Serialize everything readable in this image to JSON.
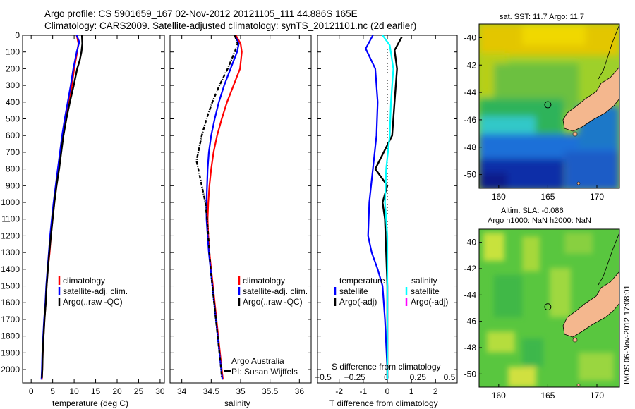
{
  "title_line1": "Argo profile: CS 5901659_167 02-Nov-2012 20121105_111 44.886S 165E",
  "title_line2": "Climatology: CARS2009. Satellite-adjusted climatology: synTS_20121101.nc (2d earlier)",
  "colors": {
    "climatology": "#ff0000",
    "satellite": "#0000ff",
    "argo": "#000000",
    "sat_salinity": "#00ffff",
    "argo_adj_salinity": "#ff00ff",
    "land": "#f4b78e"
  },
  "credit_lines": [
    "Argo Australia",
    "PI: Susan Wijffels"
  ],
  "side_stamp": "IMOS 06-Nov-2012 17:08:01",
  "chart_data": [
    {
      "type": "line",
      "name": "temperature",
      "xlabel": "temperature (deg C)",
      "ylabel": "",
      "xlim": [
        -2,
        31
      ],
      "ylim": [
        2080,
        0
      ],
      "y_inverted": true,
      "xticks": [
        0,
        5,
        10,
        15,
        20,
        25,
        30
      ],
      "yticks": [
        0,
        100,
        200,
        300,
        400,
        500,
        600,
        700,
        800,
        900,
        1000,
        1100,
        1200,
        1300,
        1400,
        1500,
        1600,
        1700,
        1800,
        1900,
        2000
      ],
      "legend": [
        "climatology",
        "satellite-adj. clim.",
        "Argo(..raw -QC)"
      ],
      "legend_position": "lower-right",
      "series": [
        {
          "name": "climatology",
          "color": "#ff0000",
          "points": [
            [
              10.6,
              0
            ],
            [
              11.0,
              50
            ],
            [
              10.7,
              100
            ],
            [
              10.0,
              200
            ],
            [
              9.5,
              300
            ],
            [
              8.8,
              400
            ],
            [
              8.1,
              500
            ],
            [
              7.5,
              600
            ],
            [
              6.9,
              700
            ],
            [
              6.4,
              800
            ],
            [
              5.9,
              900
            ],
            [
              5.4,
              1000
            ],
            [
              5.0,
              1100
            ],
            [
              4.6,
              1200
            ],
            [
              4.3,
              1300
            ],
            [
              3.9,
              1400
            ],
            [
              3.6,
              1500
            ],
            [
              3.4,
              1600
            ],
            [
              3.1,
              1700
            ],
            [
              2.9,
              1800
            ],
            [
              2.7,
              1900
            ],
            [
              2.6,
              2000
            ],
            [
              2.5,
              2060
            ]
          ]
        },
        {
          "name": "satellite-adj. clim.",
          "color": "#0000ff",
          "points": [
            [
              10.6,
              0
            ],
            [
              11.2,
              40
            ],
            [
              10.6,
              100
            ],
            [
              9.8,
              200
            ],
            [
              9.2,
              300
            ],
            [
              8.5,
              400
            ],
            [
              7.8,
              500
            ],
            [
              7.2,
              600
            ],
            [
              6.7,
              700
            ],
            [
              6.2,
              800
            ],
            [
              5.7,
              900
            ],
            [
              5.2,
              1000
            ],
            [
              4.8,
              1100
            ],
            [
              4.4,
              1200
            ],
            [
              4.1,
              1300
            ],
            [
              3.8,
              1400
            ],
            [
              3.5,
              1500
            ],
            [
              3.3,
              1600
            ],
            [
              3.0,
              1700
            ],
            [
              2.8,
              1800
            ],
            [
              2.6,
              1900
            ],
            [
              2.5,
              2000
            ],
            [
              2.4,
              2060
            ]
          ]
        },
        {
          "name": "Argo(..raw -QC)",
          "color": "#000000",
          "points": [
            [
              11.8,
              0
            ],
            [
              11.9,
              50
            ],
            [
              11.7,
              100
            ],
            [
              11.3,
              150
            ],
            [
              10.7,
              200
            ],
            [
              9.9,
              300
            ],
            [
              9.0,
              400
            ],
            [
              8.2,
              500
            ],
            [
              7.5,
              600
            ],
            [
              7.0,
              700
            ],
            [
              6.5,
              800
            ],
            [
              5.9,
              900
            ],
            [
              5.4,
              1000
            ],
            [
              5.0,
              1100
            ],
            [
              4.6,
              1200
            ],
            [
              4.2,
              1300
            ],
            [
              3.9,
              1400
            ],
            [
              3.6,
              1500
            ],
            [
              3.4,
              1600
            ],
            [
              3.1,
              1700
            ],
            [
              2.9,
              1800
            ],
            [
              2.7,
              1900
            ],
            [
              2.6,
              2000
            ],
            [
              2.5,
              2050
            ]
          ]
        }
      ]
    },
    {
      "type": "line",
      "name": "salinity",
      "xlabel": "salinity",
      "ylabel": "",
      "xlim": [
        33.8,
        36.2
      ],
      "ylim": [
        2080,
        0
      ],
      "y_inverted": true,
      "xticks": [
        34,
        34.5,
        35,
        35.5,
        36
      ],
      "legend": [
        "climatology",
        "satellite-adj. clim.",
        "Argo(..raw -QC)"
      ],
      "legend_position": "lower-right",
      "series": [
        {
          "name": "climatology",
          "color": "#ff0000",
          "points": [
            [
              34.92,
              0
            ],
            [
              35.0,
              50
            ],
            [
              35.02,
              100
            ],
            [
              34.99,
              200
            ],
            [
              34.88,
              300
            ],
            [
              34.77,
              400
            ],
            [
              34.68,
              500
            ],
            [
              34.6,
              600
            ],
            [
              34.54,
              700
            ],
            [
              34.5,
              800
            ],
            [
              34.47,
              900
            ],
            [
              34.45,
              1000
            ],
            [
              34.44,
              1100
            ],
            [
              34.45,
              1200
            ],
            [
              34.47,
              1300
            ],
            [
              34.5,
              1400
            ],
            [
              34.53,
              1500
            ],
            [
              34.56,
              1600
            ],
            [
              34.59,
              1700
            ],
            [
              34.62,
              1800
            ],
            [
              34.65,
              1900
            ],
            [
              34.68,
              2000
            ],
            [
              34.7,
              2060
            ]
          ]
        },
        {
          "name": "satellite-adj. clim.",
          "color": "#0000ff",
          "points": [
            [
              34.9,
              0
            ],
            [
              34.97,
              50
            ],
            [
              34.94,
              100
            ],
            [
              34.83,
              200
            ],
            [
              34.72,
              300
            ],
            [
              34.63,
              400
            ],
            [
              34.56,
              500
            ],
            [
              34.5,
              600
            ],
            [
              34.46,
              700
            ],
            [
              34.44,
              800
            ],
            [
              34.43,
              900
            ],
            [
              34.42,
              1000
            ],
            [
              34.42,
              1100
            ],
            [
              34.44,
              1200
            ],
            [
              34.46,
              1300
            ],
            [
              34.49,
              1400
            ],
            [
              34.52,
              1500
            ],
            [
              34.55,
              1600
            ],
            [
              34.58,
              1700
            ],
            [
              34.61,
              1800
            ],
            [
              34.64,
              1900
            ],
            [
              34.67,
              2000
            ],
            [
              34.69,
              2060
            ]
          ]
        },
        {
          "name": "Argo(..raw -QC)",
          "color": "#000000",
          "points": [
            [
              34.9,
              0
            ],
            [
              34.95,
              50
            ],
            [
              34.9,
              100
            ],
            [
              34.78,
              200
            ],
            [
              34.64,
              300
            ],
            [
              34.52,
              400
            ],
            [
              34.42,
              500
            ],
            [
              34.34,
              600
            ],
            [
              34.28,
              700
            ],
            [
              34.25,
              750
            ],
            [
              34.28,
              800
            ],
            [
              34.34,
              900
            ],
            [
              34.4,
              1000
            ],
            [
              34.43,
              1100
            ],
            [
              34.45,
              1200
            ],
            [
              34.47,
              1300
            ],
            [
              34.49,
              1400
            ],
            [
              34.52,
              1500
            ],
            [
              34.55,
              1600
            ],
            [
              34.58,
              1700
            ],
            [
              34.61,
              1800
            ],
            [
              34.64,
              1900
            ],
            [
              34.67,
              2000
            ],
            [
              34.68,
              2050
            ]
          ]
        }
      ]
    },
    {
      "type": "line",
      "name": "differences",
      "xlabel": "T difference from climatology",
      "top_label": "S difference from climatology",
      "xlim": [
        -2.9,
        2.9
      ],
      "ylim": [
        2080,
        0
      ],
      "y_inverted": true,
      "xticks": [
        -2,
        -1,
        0,
        1,
        2
      ],
      "top_ticks": [
        -0.5,
        -0.25,
        0,
        0.25,
        0.5
      ],
      "legend_left_title": "temperature",
      "legend_left": [
        "satellite",
        "Argo(-adj)"
      ],
      "legend_right_title": "salinity",
      "legend_right": [
        "satellite",
        "Argo(-adj)"
      ],
      "series": [
        {
          "name": "temperature satellite",
          "color": "#0000ff",
          "points": [
            [
              -0.6,
              0
            ],
            [
              -0.9,
              80
            ],
            [
              -0.5,
              200
            ],
            [
              -0.4,
              400
            ],
            [
              -0.45,
              600
            ],
            [
              -0.6,
              800
            ],
            [
              -0.75,
              1000
            ],
            [
              -0.8,
              1200
            ],
            [
              -0.65,
              1300
            ],
            [
              -0.4,
              1400
            ],
            [
              -0.2,
              1500
            ],
            [
              -0.1,
              1700
            ],
            [
              0,
              2000
            ],
            [
              0,
              2060
            ]
          ]
        },
        {
          "name": "temperature Argo(-adj)",
          "color": "#000000",
          "points": [
            [
              0.6,
              10
            ],
            [
              0.3,
              90
            ],
            [
              0.4,
              200
            ],
            [
              0.3,
              400
            ],
            [
              0.2,
              600
            ],
            [
              -0.5,
              800
            ],
            [
              0.0,
              900
            ],
            [
              -0.2,
              1000
            ],
            [
              -0.1,
              1100
            ],
            [
              -0.05,
              1300
            ],
            [
              0,
              1500
            ],
            [
              0,
              2050
            ]
          ]
        },
        {
          "name": "salinity satellite",
          "color": "#00ffff",
          "points": [
            [
              -0.2,
              0
            ],
            [
              0.1,
              60
            ],
            [
              0.25,
              200
            ],
            [
              0.15,
              400
            ],
            [
              0.1,
              600
            ],
            [
              -0.05,
              800
            ],
            [
              -0.1,
              1000
            ],
            [
              0.0,
              1200
            ],
            [
              0,
              1500
            ],
            [
              0,
              2000
            ],
            [
              0,
              2060
            ]
          ]
        }
      ]
    },
    {
      "type": "heatmap",
      "name": "sst-map",
      "title": "sat. SST: 11.7 Argo: 11.7",
      "xlim": [
        158,
        172.3
      ],
      "ylim": [
        -51,
        -39
      ],
      "xticks": [
        160,
        165,
        170
      ],
      "yticks": [
        -40,
        -42,
        -44,
        -46,
        -48,
        -50
      ],
      "marker": [
        165,
        -44.9
      ]
    },
    {
      "type": "heatmap",
      "name": "sla-map",
      "title_lines": [
        "Altim. SLA: -0.086",
        "Argo h1000: NaN h2000: NaN"
      ],
      "xlim": [
        158,
        172.3
      ],
      "ylim": [
        -51,
        -39
      ],
      "xticks": [
        160,
        165,
        170
      ],
      "yticks": [
        -40,
        -42,
        -44,
        -46,
        -48,
        -50
      ],
      "marker": [
        165,
        -44.9
      ]
    }
  ]
}
